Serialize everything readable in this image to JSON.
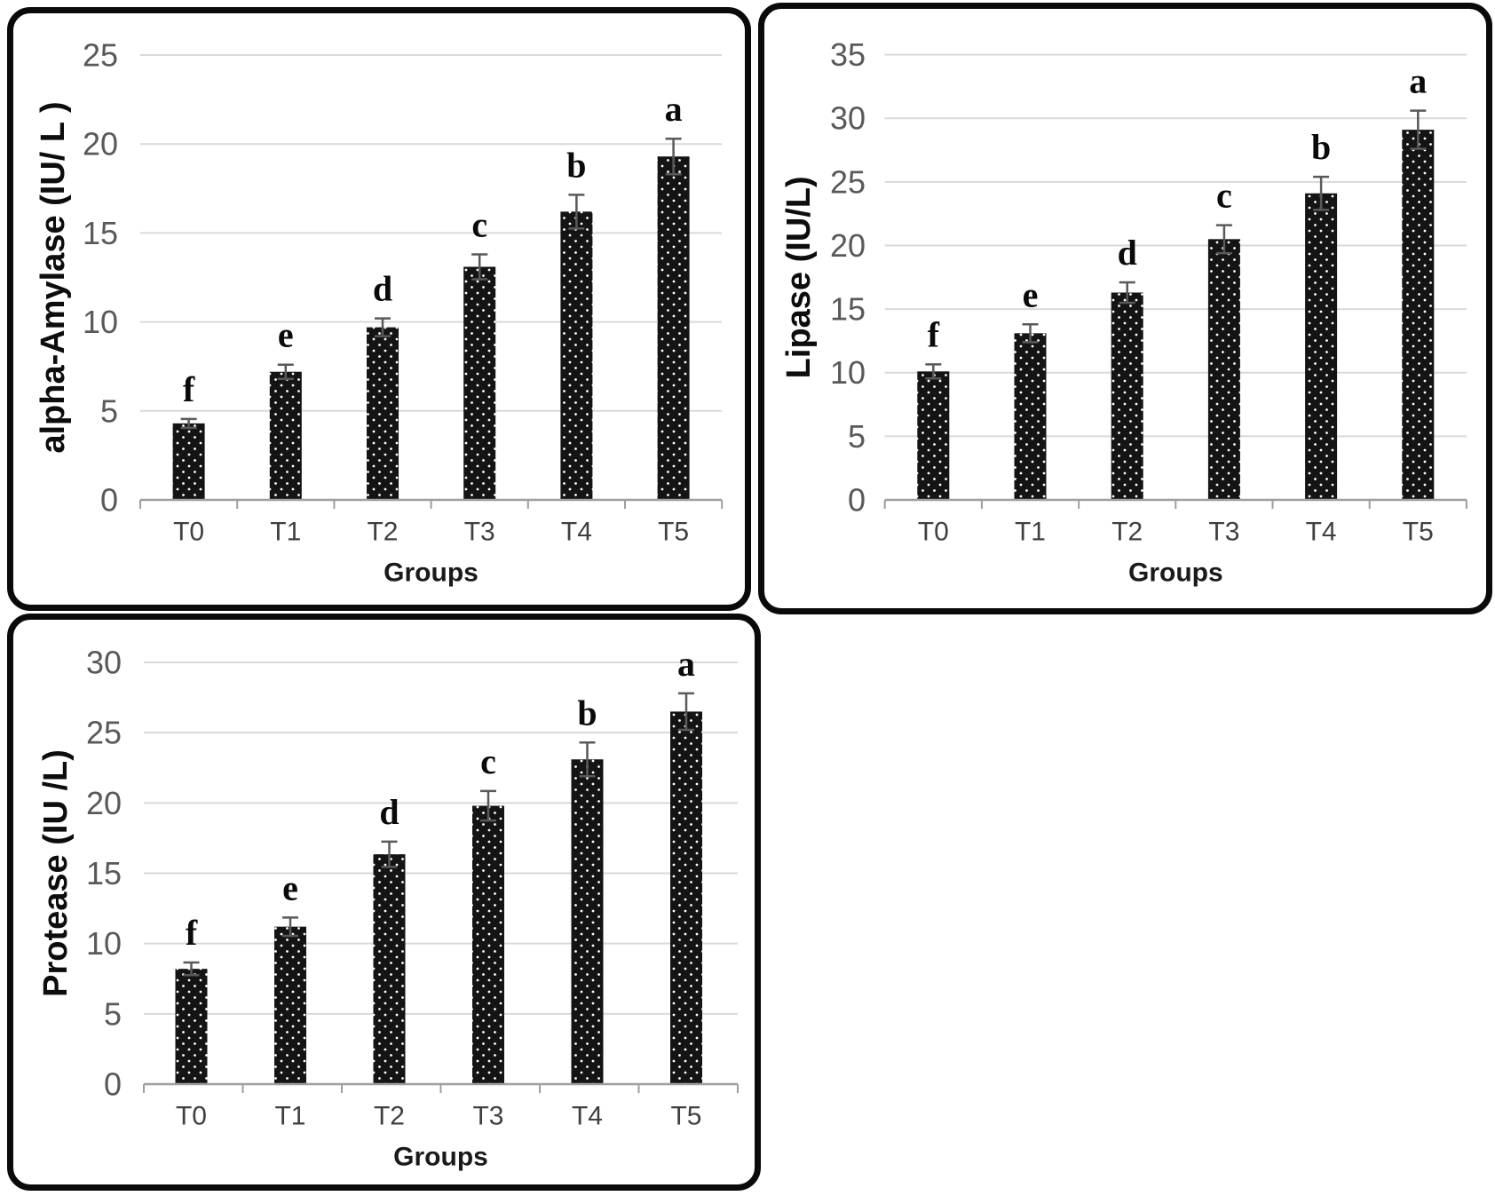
{
  "figure": {
    "background": "#ffffff",
    "panel_border_color": "#0a0a0a",
    "bar_fill": "black with white polka-dot pattern",
    "bar_color": "#141414",
    "dot_color": "#ffffff",
    "gridline_color": "#d9d9d9",
    "axis_line_color": "#9e9e9e",
    "tick_label_color": "#595959",
    "category_label_color": "#3f3f3f",
    "error_bar_color": "#595959",
    "letter_color": "#0a0a0a",
    "grid": "horizontal gridlines on",
    "legend": "none"
  },
  "chart_data": [
    {
      "type": "bar",
      "title": "",
      "ylabel": "alpha-Amylase (IU/ L )",
      "xlabel": "Groups",
      "categories": [
        "T0",
        "T1",
        "T2",
        "T3",
        "T4",
        "T5"
      ],
      "values": [
        4.3,
        7.2,
        9.7,
        13.1,
        16.2,
        19.3
      ],
      "errors": [
        0.25,
        0.4,
        0.5,
        0.7,
        0.95,
        1.0
      ],
      "letters": [
        "f",
        "e",
        "d",
        "c",
        "b",
        "a"
      ],
      "ylim": [
        0,
        25
      ],
      "ystep": 5,
      "yticks": [
        0,
        5,
        10,
        15,
        20,
        25
      ]
    },
    {
      "type": "bar",
      "title": "",
      "ylabel": "Lipase (IU/L)",
      "xlabel": "Groups",
      "categories": [
        "T0",
        "T1",
        "T2",
        "T3",
        "T4",
        "T5"
      ],
      "values": [
        10.1,
        13.1,
        16.3,
        20.5,
        24.1,
        29.1
      ],
      "errors": [
        0.55,
        0.7,
        0.8,
        1.1,
        1.3,
        1.5
      ],
      "letters": [
        "f",
        "e",
        "d",
        "c",
        "b",
        "a"
      ],
      "ylim": [
        0,
        35
      ],
      "ystep": 5,
      "yticks": [
        0,
        5,
        10,
        15,
        20,
        25,
        30,
        35
      ]
    },
    {
      "type": "bar",
      "title": "",
      "ylabel": "Protease (IU /L)",
      "xlabel": "Groups",
      "categories": [
        "T0",
        "T1",
        "T2",
        "T3",
        "T4",
        "T5"
      ],
      "values": [
        8.2,
        11.2,
        16.35,
        19.8,
        23.1,
        26.5
      ],
      "errors": [
        0.45,
        0.65,
        0.9,
        1.05,
        1.2,
        1.3
      ],
      "letters": [
        "f",
        "e",
        "d",
        "c",
        "b",
        "a"
      ],
      "ylim": [
        0,
        30
      ],
      "ystep": 5,
      "yticks": [
        0,
        5,
        10,
        15,
        20,
        25,
        30
      ]
    }
  ]
}
